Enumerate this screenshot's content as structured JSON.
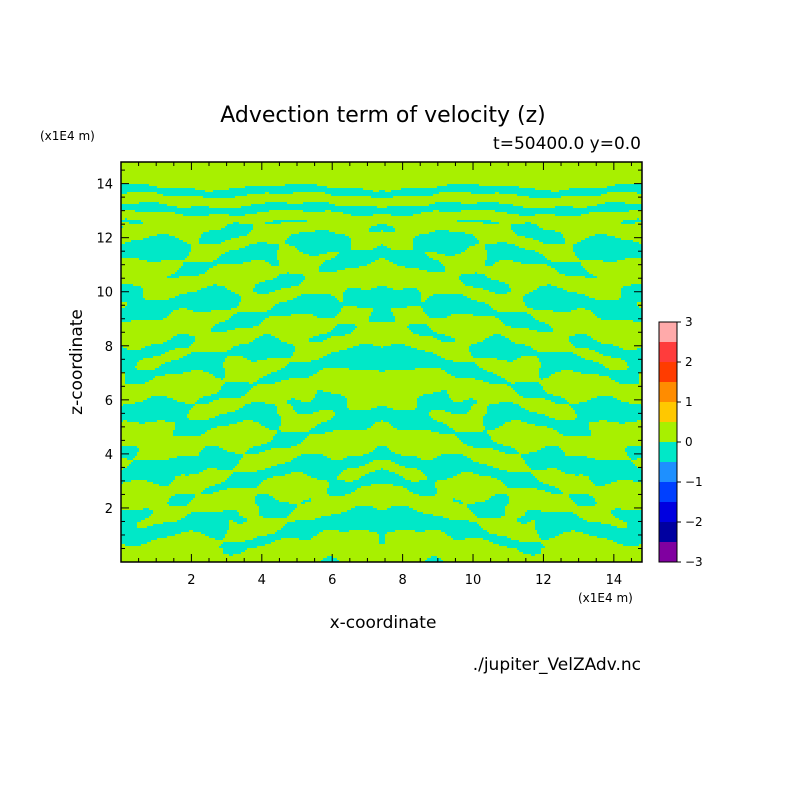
{
  "chart_data": {
    "type": "heatmap",
    "title": "Advection term of velocity (z)",
    "subtitle": "t=50400.0 y=0.0",
    "xlabel": "x-coordinate",
    "ylabel": "z-coordinate",
    "x_unit": "(x1E4 m)",
    "y_unit": "(x1E4 m)",
    "xlim": [
      0,
      14.8
    ],
    "ylim": [
      0,
      14.8
    ],
    "x_ticks": [
      2,
      4,
      6,
      8,
      10,
      12,
      14
    ],
    "y_ticks": [
      2,
      4,
      6,
      8,
      10,
      12,
      14
    ],
    "colorbar": {
      "levels": [
        -3,
        -2.5,
        -2,
        -1.5,
        -1,
        -0.5,
        0,
        0.5,
        1,
        1.5,
        2,
        2.5,
        3
      ],
      "colors": [
        "#8000a0",
        "#0000a0",
        "#0000e0",
        "#0040ff",
        "#1e90ff",
        "#00e8c8",
        "#a8f000",
        "#ffc800",
        "#ff8c00",
        "#ff3c00",
        "#ff3c3c",
        "#ffaaaa"
      ],
      "tick_labels": [
        "3",
        "2",
        "1",
        "0",
        "−1",
        "−2",
        "−3"
      ]
    },
    "background_color": "#a8f000",
    "pattern_color": "#00e8c8",
    "description_of_field": "Two-valued pattern: green (0 to 0.5) and cyan (-0.5 to 0), horizontally banded, mirror-symmetric about x=7.4"
  },
  "footer": {
    "source_file": "./jupiter_VelZAdv.nc"
  }
}
